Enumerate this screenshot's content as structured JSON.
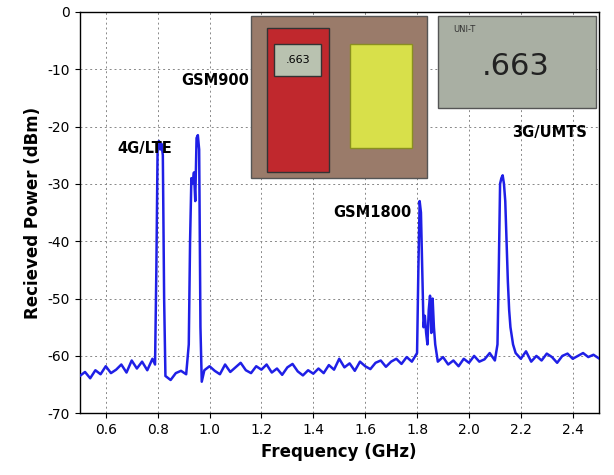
{
  "chart_data": {
    "type": "line",
    "x_label": "Frequency (GHz)",
    "y_label": "Recieved Power (dBm)",
    "annotations": [
      "4G/LTE",
      "GSM900",
      "GSM1800",
      "3G/UMTS"
    ],
    "inset": {
      "display": ".663",
      "brand": "UNI-T"
    },
    "xlim": [
      0.5,
      2.5
    ],
    "ylim": [
      -70,
      0
    ],
    "xticks": [
      0.6,
      0.8,
      1.0,
      1.2,
      1.4,
      1.6,
      1.8,
      2.0,
      2.2,
      2.4
    ],
    "yticks": [
      -70,
      -60,
      -50,
      -40,
      -30,
      -20,
      -10,
      0
    ],
    "grid": true,
    "color": "#1f1fe6",
    "line_style": "solid",
    "x": [
      0.5,
      0.52,
      0.54,
      0.56,
      0.58,
      0.6,
      0.62,
      0.64,
      0.66,
      0.68,
      0.7,
      0.72,
      0.74,
      0.76,
      0.78,
      0.79,
      0.795,
      0.8,
      0.805,
      0.81,
      0.815,
      0.82,
      0.825,
      0.83,
      0.85,
      0.87,
      0.89,
      0.91,
      0.92,
      0.925,
      0.93,
      0.935,
      0.94,
      0.945,
      0.95,
      0.955,
      0.96,
      0.965,
      0.97,
      0.98,
      1.0,
      1.02,
      1.04,
      1.06,
      1.08,
      1.1,
      1.12,
      1.14,
      1.16,
      1.18,
      1.2,
      1.22,
      1.24,
      1.26,
      1.28,
      1.3,
      1.32,
      1.34,
      1.36,
      1.38,
      1.4,
      1.42,
      1.44,
      1.46,
      1.48,
      1.5,
      1.52,
      1.54,
      1.56,
      1.58,
      1.6,
      1.62,
      1.64,
      1.66,
      1.68,
      1.7,
      1.72,
      1.74,
      1.76,
      1.78,
      1.8,
      1.805,
      1.81,
      1.815,
      1.82,
      1.825,
      1.83,
      1.835,
      1.84,
      1.845,
      1.85,
      1.855,
      1.86,
      1.865,
      1.87,
      1.875,
      1.88,
      1.9,
      1.92,
      1.94,
      1.96,
      1.98,
      2.0,
      2.02,
      2.04,
      2.06,
      2.08,
      2.1,
      2.11,
      2.115,
      2.12,
      2.125,
      2.13,
      2.135,
      2.14,
      2.145,
      2.15,
      2.155,
      2.16,
      2.17,
      2.18,
      2.2,
      2.22,
      2.24,
      2.26,
      2.28,
      2.3,
      2.32,
      2.34,
      2.36,
      2.38,
      2.4,
      2.42,
      2.44,
      2.46,
      2.48,
      2.5
    ],
    "values": [
      -63.5,
      -62.8,
      -63.9,
      -62.5,
      -63.2,
      -61.8,
      -63.0,
      -62.4,
      -61.5,
      -62.9,
      -60.8,
      -62.2,
      -61.0,
      -62.5,
      -60.5,
      -61.5,
      -45,
      -23,
      -22.5,
      -24,
      -23,
      -25,
      -50,
      -63.5,
      -64.2,
      -63,
      -62.6,
      -63.2,
      -58,
      -40,
      -29,
      -30,
      -28,
      -33,
      -22,
      -21.5,
      -24,
      -55,
      -64.5,
      -62.5,
      -61.8,
      -62.6,
      -63.2,
      -61.5,
      -62.8,
      -62.0,
      -61.2,
      -62.5,
      -63.0,
      -61.8,
      -62.4,
      -61.5,
      -62.9,
      -62.2,
      -63.3,
      -62.0,
      -61.4,
      -62.7,
      -63.4,
      -62.5,
      -63.1,
      -62.2,
      -63.0,
      -61.6,
      -62.4,
      -60.5,
      -62.0,
      -61.3,
      -62.6,
      -61.0,
      -61.8,
      -62.3,
      -61.2,
      -60.8,
      -61.9,
      -61.0,
      -60.5,
      -61.4,
      -60.2,
      -61.0,
      -59.5,
      -45,
      -33,
      -35,
      -45,
      -55,
      -53,
      -56,
      -58,
      -52,
      -49.5,
      -56,
      -50,
      -55,
      -58,
      -59.5,
      -61,
      -60.2,
      -61.5,
      -60.8,
      -61.8,
      -60.5,
      -61.2,
      -60.0,
      -61.0,
      -60.6,
      -59.5,
      -60.8,
      -58,
      -45,
      -30,
      -29,
      -28.5,
      -30,
      -33,
      -40,
      -47,
      -52,
      -55,
      -58,
      -59.5,
      -60.5,
      -59.2,
      -61.0,
      -60.0,
      -60.8,
      -59.6,
      -60.2,
      -61.2,
      -60.0,
      -59.6,
      -60.5,
      -60.0,
      -59.5,
      -60.2,
      -59.8,
      -60.4
    ]
  }
}
